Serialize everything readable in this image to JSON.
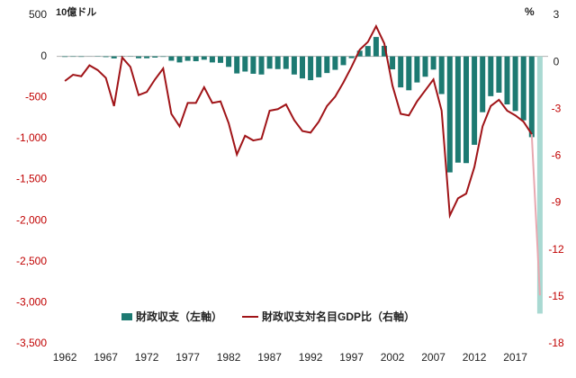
{
  "chart_data": {
    "type": "bar-line",
    "left_unit": "10億ドル",
    "right_unit": "%",
    "x": [
      1962,
      1963,
      1964,
      1965,
      1966,
      1967,
      1968,
      1969,
      1970,
      1971,
      1972,
      1973,
      1974,
      1975,
      1976,
      1977,
      1978,
      1979,
      1980,
      1981,
      1982,
      1983,
      1984,
      1985,
      1986,
      1987,
      1988,
      1989,
      1990,
      1991,
      1992,
      1993,
      1994,
      1995,
      1996,
      1997,
      1998,
      1999,
      2000,
      2001,
      2002,
      2003,
      2004,
      2005,
      2006,
      2007,
      2008,
      2009,
      2010,
      2011,
      2012,
      2013,
      2014,
      2015,
      2016,
      2017,
      2018,
      2019,
      2020
    ],
    "xlim": [
      1961,
      2021
    ],
    "xticks": [
      1962,
      1967,
      1972,
      1977,
      1982,
      1987,
      1992,
      1997,
      2002,
      2007,
      2012,
      2017
    ],
    "ylim": [
      -3500,
      500
    ],
    "yticks": [
      {
        "value": -3500,
        "label": "-3,500"
      },
      {
        "value": -3000,
        "label": "-3,000"
      },
      {
        "value": -2500,
        "label": "-2,500"
      },
      {
        "value": -2000,
        "label": "-2,000"
      },
      {
        "value": -1500,
        "label": "-1,500"
      },
      {
        "value": -1000,
        "label": "-1,000"
      },
      -500,
      0,
      500
    ],
    "y2lim": [
      -18,
      3
    ],
    "y2ticks": [
      -18,
      -15,
      -12,
      -9,
      -6,
      -3,
      0,
      3
    ],
    "negative_label_color": "#c00000",
    "grid": false,
    "series": [
      {
        "name": "財政収支（左軸）",
        "type": "bar",
        "color": "#1d7a72",
        "highlight_color": "#a9d9d2",
        "values": [
          -7,
          -5,
          -6,
          -1,
          -4,
          -9,
          -25,
          3,
          -3,
          -23,
          -23,
          -15,
          -6,
          -53,
          -74,
          -54,
          -59,
          -41,
          -74,
          -79,
          -128,
          -208,
          -185,
          -212,
          -221,
          -150,
          -155,
          -153,
          -221,
          -269,
          -290,
          -255,
          -203,
          -164,
          -107,
          -22,
          69,
          126,
          236,
          128,
          -158,
          -378,
          -413,
          -318,
          -248,
          -161,
          -459,
          -1413,
          -1294,
          -1300,
          -1077,
          -680,
          -485,
          -442,
          -585,
          -665,
          -779,
          -984,
          -3132
        ]
      },
      {
        "name": "財政収支対名目GDP比（右軸）",
        "type": "line",
        "axis": "y2",
        "color": "#a01418",
        "highlight_color": "#e8a8b0",
        "values": [
          -1.2,
          -0.8,
          -0.9,
          -0.2,
          -0.5,
          -1.0,
          -2.8,
          0.3,
          -0.3,
          -2.1,
          -1.9,
          -1.1,
          -0.4,
          -3.3,
          -4.1,
          -2.6,
          -2.6,
          -1.6,
          -2.6,
          -2.5,
          -3.9,
          -5.9,
          -4.7,
          -5.0,
          -4.9,
          -3.1,
          -3.0,
          -2.7,
          -3.7,
          -4.4,
          -4.5,
          -3.8,
          -2.8,
          -2.2,
          -1.3,
          -0.3,
          0.8,
          1.3,
          2.3,
          1.2,
          -1.5,
          -3.3,
          -3.4,
          -2.5,
          -1.8,
          -1.1,
          -3.1,
          -9.8,
          -8.7,
          -8.4,
          -6.7,
          -4.1,
          -2.8,
          -2.4,
          -3.1,
          -3.4,
          -3.8,
          -4.6,
          -14.9
        ]
      }
    ]
  }
}
